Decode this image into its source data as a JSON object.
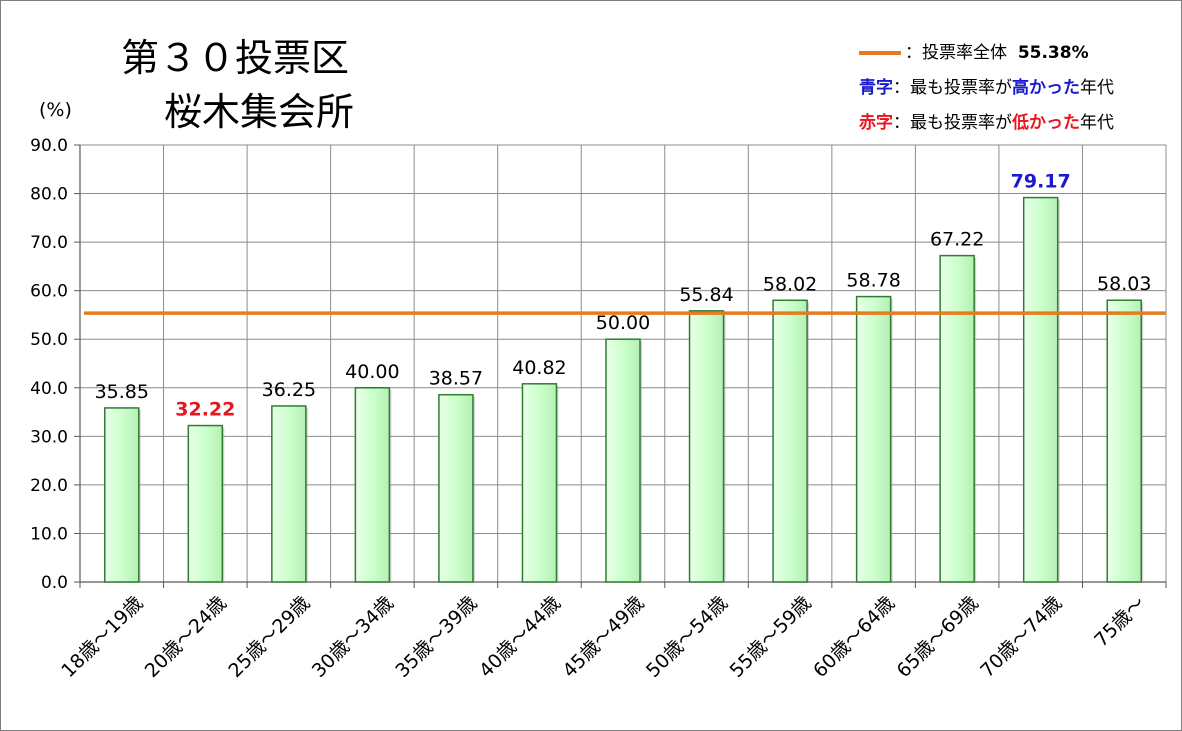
{
  "title": {
    "line1": "第３０投票区",
    "line2": "桜木集会所"
  },
  "unit_label": "(%)",
  "legend": {
    "overall_label": "：投票率全体",
    "overall_value": "55.38%",
    "blue_key": "青字",
    "blue_text_1": "：最も投票率が",
    "blue_emph": "高かった",
    "blue_text_2": "年代",
    "red_key": "赤字",
    "red_text_1": "：最も投票率が",
    "red_emph": "低かった",
    "red_text_2": "年代"
  },
  "colors": {
    "bar_fill": "#ccffcc",
    "bar_stroke": "#2e7d32",
    "overall_line": "#e87b1e",
    "highest": "#1a1acc",
    "lowest": "#e8141e"
  },
  "chart_data": {
    "type": "bar",
    "categories": [
      "18歳～19歳",
      "20歳～24歳",
      "25歳～29歳",
      "30歳～34歳",
      "35歳～39歳",
      "40歳～44歳",
      "45歳～49歳",
      "50歳～54歳",
      "55歳～59歳",
      "60歳～64歳",
      "65歳～69歳",
      "70歳～74歳",
      "75歳～"
    ],
    "values": [
      35.85,
      32.22,
      36.25,
      40.0,
      38.57,
      40.82,
      50.0,
      55.84,
      58.02,
      58.78,
      67.22,
      79.17,
      58.03
    ],
    "value_labels": [
      "35.85",
      "32.22",
      "36.25",
      "40.00",
      "38.57",
      "40.82",
      "50.00",
      "55.84",
      "58.02",
      "58.78",
      "67.22",
      "79.17",
      "58.03"
    ],
    "highest_index": 11,
    "lowest_index": 1,
    "overall_rate": 55.38,
    "ylim": [
      0,
      90
    ],
    "yticks": [
      "0.0",
      "10.0",
      "20.0",
      "30.0",
      "40.0",
      "50.0",
      "60.0",
      "70.0",
      "80.0",
      "90.0"
    ],
    "grid": true
  }
}
